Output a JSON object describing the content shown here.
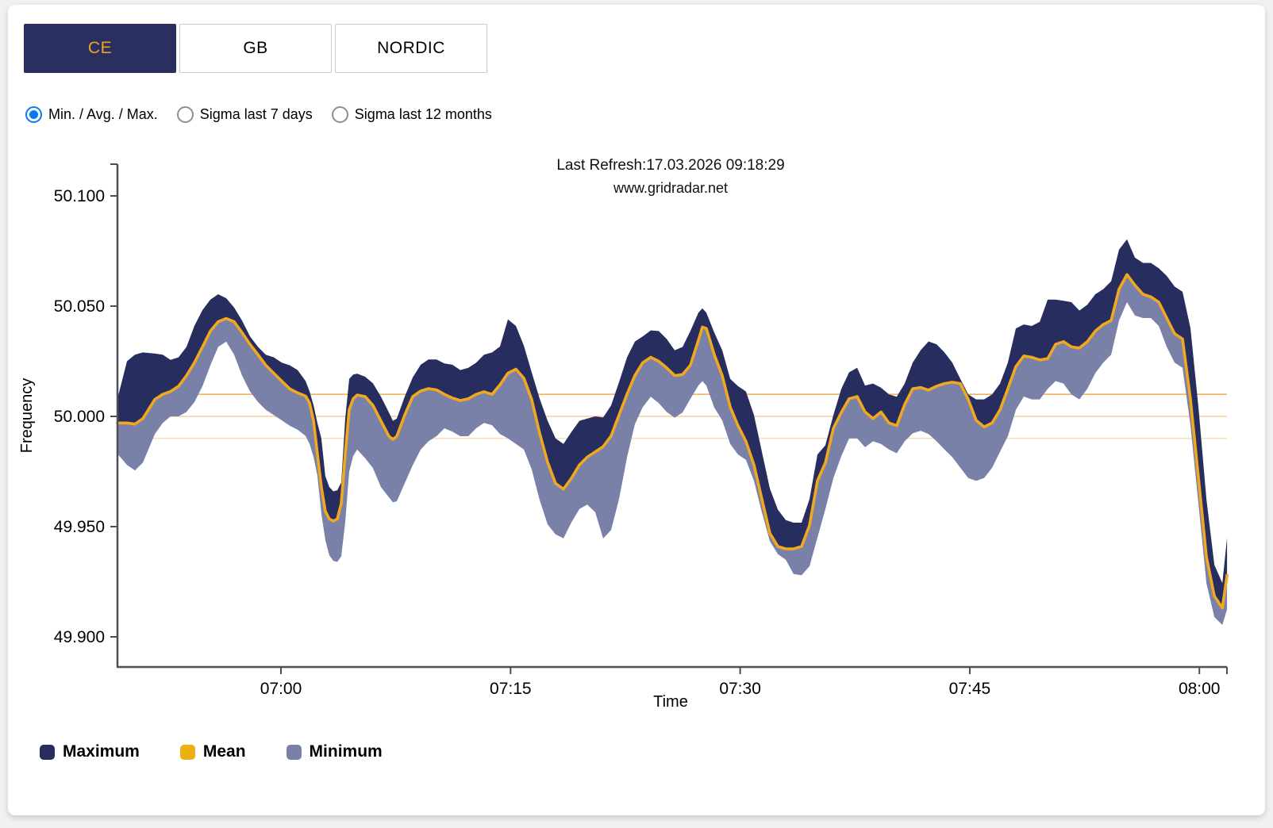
{
  "page": {
    "background": "#f1f1f4",
    "card_background": "#ffffff"
  },
  "colors": {
    "tab_selected_bg": "#2b2f5f",
    "tab_selected_text": "#eca425",
    "tab_unselected_bg": "#ffffff",
    "tab_unselected_text": "#000000",
    "tab_border": "#c9c9c9",
    "radio_selected": "#0b79f0",
    "radio_unselected": "#8e8e93",
    "axis": "#4d4e56",
    "text": "#000000",
    "maximum_band": "#282d5f",
    "mean_line": "#f0a81f",
    "minimum_band": "#7a81a8",
    "reference_lines": [
      "#edb267",
      "#f3cf9b",
      "#f8e3c0"
    ]
  },
  "tabs": [
    {
      "label": "CE",
      "selected": true
    },
    {
      "label": "GB",
      "selected": false
    },
    {
      "label": "NORDIC",
      "selected": false
    }
  ],
  "radios": [
    {
      "label": "Min. / Avg. / Max.",
      "selected": true
    },
    {
      "label": "Sigma last 7 days",
      "selected": false
    },
    {
      "label": "Sigma last 12 months",
      "selected": false
    }
  ],
  "chart_data": {
    "type": "area",
    "title": "Last Refresh:17.03.2026 09:18:29",
    "subtitle": "www.gridradar.net",
    "xlabel": "Time",
    "ylabel": "Frequency",
    "x_ticks": [
      {
        "label": "07:00",
        "t": 0
      },
      {
        "label": "07:15",
        "t": 15
      },
      {
        "label": "07:30",
        "t": 30
      },
      {
        "label": "07:45",
        "t": 45
      },
      {
        "label": "08:00",
        "t": 60
      }
    ],
    "y_ticks": [
      {
        "label": "50.100",
        "value": 50.1
      },
      {
        "label": "50.050",
        "value": 50.05
      },
      {
        "label": "50.000",
        "value": 50.0
      },
      {
        "label": "49.950",
        "value": 49.95
      },
      {
        "label": "49.900",
        "value": 49.9
      }
    ],
    "ylim": [
      49.886,
      50.114
    ],
    "t_range_minutes_from_0700": [
      -10.68,
      61.81
    ],
    "grid": false,
    "reference_line_values": [
      50.01,
      50.0,
      49.99
    ],
    "legend": [
      {
        "label": "Maximum",
        "color": "#282d5f"
      },
      {
        "label": "Mean",
        "color": "#edb012"
      },
      {
        "label": "Minimum",
        "color": "#7a81a8"
      }
    ],
    "legend_position": "bottom-left",
    "columns": [
      "minutes_from_07:00",
      "maximum_hz",
      "mean_hz",
      "minimum_hz"
    ],
    "rows": [
      [
        -10.68,
        50.008,
        49.997,
        49.983
      ],
      [
        -10.06,
        50.025,
        49.997,
        49.978
      ],
      [
        -9.54,
        50.028,
        49.9965,
        49.9755
      ],
      [
        -9.02,
        50.029,
        49.999,
        49.979
      ],
      [
        -8.24,
        50.0285,
        50.0077,
        49.992
      ],
      [
        -7.72,
        50.028,
        50.01,
        49.997
      ],
      [
        -7.21,
        50.0256,
        50.0113,
        50.0
      ],
      [
        -6.69,
        50.0268,
        50.0137,
        50.0
      ],
      [
        -6.17,
        50.0315,
        50.0185,
        50.002
      ],
      [
        -5.65,
        50.0411,
        50.0244,
        50.0065
      ],
      [
        -5.13,
        50.0482,
        50.0315,
        50.0137
      ],
      [
        -4.61,
        50.053,
        50.0387,
        50.0232
      ],
      [
        -4.1,
        50.0554,
        50.0429,
        50.0315
      ],
      [
        -3.58,
        50.0536,
        50.0444,
        50.0339
      ],
      [
        -3.06,
        50.0494,
        50.0429,
        50.028
      ],
      [
        -2.54,
        50.0434,
        50.038,
        50.0185
      ],
      [
        -2.02,
        50.0363,
        50.0327,
        50.0113
      ],
      [
        -1.5,
        50.0315,
        50.028,
        50.0065
      ],
      [
        -0.99,
        50.028,
        50.0232,
        50.003
      ],
      [
        -0.47,
        50.0268,
        50.0196,
        50.0006
      ],
      [
        0.05,
        50.0244,
        50.016,
        49.9982
      ],
      [
        0.57,
        50.0232,
        50.0125,
        49.9958
      ],
      [
        1.09,
        50.021,
        50.0107,
        49.994
      ],
      [
        1.61,
        50.016,
        50.0092,
        49.9911
      ],
      [
        1.87,
        50.0113,
        50.006,
        49.9875
      ],
      [
        2.13,
        50.005,
        49.998,
        49.9815
      ],
      [
        2.38,
        49.997,
        49.983,
        49.9732
      ],
      [
        2.64,
        49.99,
        49.968,
        49.956
      ],
      [
        2.9,
        49.973,
        49.957,
        49.944
      ],
      [
        3.16,
        49.968,
        49.9535,
        49.937
      ],
      [
        3.42,
        49.966,
        49.9525,
        49.9345
      ],
      [
        3.68,
        49.9665,
        49.9535,
        49.934
      ],
      [
        3.94,
        49.97,
        49.9605,
        49.9365
      ],
      [
        4.2,
        49.999,
        49.983,
        49.952
      ],
      [
        4.46,
        50.017,
        50.003,
        49.975
      ],
      [
        4.72,
        50.019,
        50.008,
        49.982
      ],
      [
        4.98,
        50.0194,
        50.0097,
        49.985
      ],
      [
        5.5,
        50.018,
        50.009,
        49.981
      ],
      [
        6.01,
        50.015,
        50.005,
        49.9766
      ],
      [
        6.53,
        50.009,
        49.998,
        49.968
      ],
      [
        7.05,
        50.0018,
        49.991,
        49.9633
      ],
      [
        7.31,
        49.998,
        49.9896,
        49.961
      ],
      [
        7.57,
        49.999,
        49.991,
        49.9615
      ],
      [
        8.09,
        50.009,
        50.0007,
        49.9697
      ],
      [
        8.61,
        50.0177,
        50.009,
        49.9779
      ],
      [
        9.13,
        50.0234,
        50.0115,
        49.985
      ],
      [
        9.64,
        50.0258,
        50.0126,
        49.9887
      ],
      [
        10.16,
        50.0258,
        50.012,
        49.991
      ],
      [
        10.68,
        50.024,
        50.01,
        49.9946
      ],
      [
        11.2,
        50.0234,
        50.0083,
        49.9931
      ],
      [
        11.72,
        50.021,
        50.0072,
        49.991
      ],
      [
        12.24,
        50.022,
        50.008,
        49.991
      ],
      [
        12.75,
        50.0243,
        50.01,
        49.9946
      ],
      [
        13.27,
        50.028,
        50.0112,
        49.997
      ],
      [
        13.79,
        50.029,
        50.01,
        49.996
      ],
      [
        14.31,
        50.0317,
        50.0143,
        49.992
      ],
      [
        14.83,
        50.044,
        50.0196,
        49.99
      ],
      [
        15.35,
        50.041,
        50.0214,
        49.9875
      ],
      [
        15.87,
        50.032,
        50.0173,
        49.985
      ],
      [
        16.38,
        50.02,
        50.0077,
        49.976
      ],
      [
        16.9,
        50.008,
        49.9923,
        49.962
      ],
      [
        17.42,
        49.998,
        49.9792,
        49.951
      ],
      [
        17.94,
        49.99,
        49.9696,
        49.9465
      ],
      [
        18.46,
        49.9875,
        49.967,
        49.9447
      ],
      [
        18.98,
        49.993,
        49.972,
        49.952
      ],
      [
        19.5,
        49.998,
        49.978,
        49.958
      ],
      [
        20.01,
        49.999,
        49.9815,
        49.96
      ],
      [
        20.53,
        50.0,
        49.9839,
        49.9565
      ],
      [
        21.05,
        49.9995,
        49.9863,
        49.9446
      ],
      [
        21.57,
        50.005,
        49.9911,
        49.9485
      ],
      [
        22.09,
        50.0155,
        50.0006,
        49.9625
      ],
      [
        22.61,
        50.0268,
        50.0101,
        49.9815
      ],
      [
        23.12,
        50.0339,
        50.0185,
        49.9964
      ],
      [
        23.64,
        50.0363,
        50.0244,
        50.0042
      ],
      [
        24.16,
        50.039,
        50.0268,
        50.0089
      ],
      [
        24.68,
        50.0387,
        50.025,
        50.006
      ],
      [
        25.2,
        50.0351,
        50.022,
        50.002
      ],
      [
        25.72,
        50.03,
        50.0185,
        49.9994
      ],
      [
        26.24,
        50.0315,
        50.019,
        50.0018
      ],
      [
        26.75,
        50.0387,
        50.0232,
        50.008
      ],
      [
        27.27,
        50.047,
        50.0345,
        50.014
      ],
      [
        27.53,
        50.049,
        50.0405,
        50.016
      ],
      [
        27.79,
        50.047,
        50.0399,
        50.014
      ],
      [
        28.31,
        50.038,
        50.028,
        50.004
      ],
      [
        28.83,
        50.03,
        50.0185,
        49.9982
      ],
      [
        29.35,
        50.017,
        50.0042,
        49.9875
      ],
      [
        29.86,
        50.0137,
        49.9958,
        49.9827
      ],
      [
        30.38,
        50.0113,
        49.9887,
        49.9803
      ],
      [
        30.9,
        50.0006,
        49.978,
        49.9708
      ],
      [
        31.42,
        49.9839,
        49.9625,
        49.9565
      ],
      [
        31.94,
        49.9673,
        49.947,
        49.9434
      ],
      [
        32.46,
        49.9577,
        49.941,
        49.9375
      ],
      [
        32.98,
        49.953,
        49.9399,
        49.935
      ],
      [
        33.49,
        49.9518,
        49.9399,
        49.9285
      ],
      [
        34.01,
        49.9518,
        49.941,
        49.928
      ],
      [
        34.53,
        49.9625,
        49.9506,
        49.932
      ],
      [
        35.05,
        49.9827,
        49.9708,
        49.945
      ],
      [
        35.57,
        49.9869,
        49.979,
        49.958
      ],
      [
        36.09,
        50.0006,
        49.9946,
        49.972
      ],
      [
        36.61,
        50.0125,
        50.0018,
        49.982
      ],
      [
        37.12,
        50.02,
        50.008,
        49.99
      ],
      [
        37.64,
        50.022,
        50.009,
        49.99
      ],
      [
        38.16,
        50.014,
        50.002,
        49.986
      ],
      [
        38.68,
        50.0149,
        49.999,
        49.9887
      ],
      [
        39.2,
        50.013,
        50.002,
        49.9875
      ],
      [
        39.72,
        50.01,
        49.997,
        49.985
      ],
      [
        40.23,
        50.0089,
        49.9958,
        49.9833
      ],
      [
        40.75,
        50.0149,
        50.0054,
        49.9887
      ],
      [
        41.27,
        50.0244,
        50.0125,
        49.9923
      ],
      [
        41.79,
        50.03,
        50.0131,
        49.9935
      ],
      [
        42.31,
        50.034,
        50.0119,
        49.992
      ],
      [
        42.83,
        50.0327,
        50.0137,
        49.9887
      ],
      [
        43.35,
        50.029,
        50.0149,
        49.985
      ],
      [
        43.86,
        50.0244,
        50.0155,
        49.9815
      ],
      [
        44.38,
        50.017,
        50.0149,
        49.9767
      ],
      [
        44.9,
        50.01,
        50.0077,
        49.972
      ],
      [
        45.42,
        50.0077,
        49.9982,
        49.9708
      ],
      [
        45.94,
        50.0077,
        49.9952,
        49.972
      ],
      [
        46.46,
        50.01,
        49.997,
        49.9767
      ],
      [
        46.98,
        50.0149,
        50.003,
        49.984
      ],
      [
        47.49,
        50.0244,
        50.0125,
        49.991
      ],
      [
        48.01,
        50.0399,
        50.0226,
        50.003
      ],
      [
        48.53,
        50.0417,
        50.0274,
        50.009
      ],
      [
        49.05,
        50.041,
        50.0268,
        50.0077
      ],
      [
        49.57,
        50.0429,
        50.0256,
        50.0077
      ],
      [
        50.09,
        50.053,
        50.0262,
        50.0125
      ],
      [
        50.61,
        50.053,
        50.0327,
        50.016
      ],
      [
        51.12,
        50.0524,
        50.0339,
        50.0149
      ],
      [
        51.64,
        50.0518,
        50.0315,
        50.01
      ],
      [
        52.16,
        50.048,
        50.031,
        50.0077
      ],
      [
        52.68,
        50.0506,
        50.0339,
        50.0125
      ],
      [
        53.2,
        50.0554,
        50.0387,
        50.0196
      ],
      [
        53.72,
        50.0577,
        50.0417,
        50.0244
      ],
      [
        54.24,
        50.0613,
        50.0435,
        50.028
      ],
      [
        54.75,
        50.0756,
        50.0577,
        50.0435
      ],
      [
        55.27,
        50.0803,
        50.0643,
        50.0518
      ],
      [
        55.79,
        50.072,
        50.0595,
        50.0458
      ],
      [
        56.31,
        50.0696,
        50.0554,
        50.0446
      ],
      [
        56.83,
        50.0696,
        50.0542,
        50.0446
      ],
      [
        57.35,
        50.0672,
        50.0518,
        50.041
      ],
      [
        57.87,
        50.0637,
        50.0446,
        50.0315
      ],
      [
        58.38,
        50.0589,
        50.0375,
        50.0244
      ],
      [
        58.9,
        50.0565,
        50.0351,
        50.022
      ],
      [
        59.42,
        50.04,
        50.0077,
        49.996
      ],
      [
        59.94,
        50.004,
        49.972,
        49.9603
      ],
      [
        60.46,
        49.9625,
        49.9363,
        49.9244
      ],
      [
        60.98,
        49.9327,
        49.9185,
        49.909
      ],
      [
        61.5,
        49.9244,
        49.9131,
        49.9054
      ],
      [
        61.81,
        49.945,
        49.928,
        49.9125
      ]
    ]
  }
}
